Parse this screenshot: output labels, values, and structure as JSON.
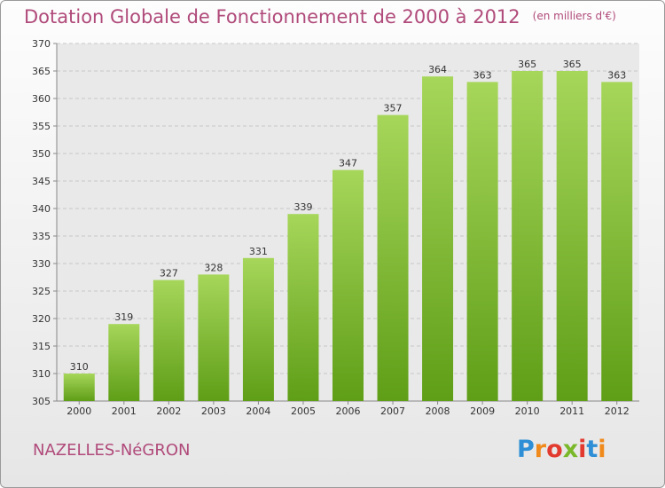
{
  "header": {
    "title": "Dotation Globale de Fonctionnement de 2000 à 2012",
    "unit": "(en milliers d'€)"
  },
  "footer": {
    "commune": "NAZELLES-NéGRON",
    "logo_letters": [
      "P",
      "r",
      "o",
      "x",
      "i",
      "t",
      "i"
    ],
    "logo_colors": [
      "#2e8fd6",
      "#f08a1c",
      "#e23a2e",
      "#7ab82a",
      "#e23a2e",
      "#2e8fd6",
      "#f08a1c"
    ]
  },
  "chart_data": {
    "type": "bar",
    "categories": [
      "2000",
      "2001",
      "2002",
      "2003",
      "2004",
      "2005",
      "2006",
      "2007",
      "2008",
      "2009",
      "2010",
      "2011",
      "2012"
    ],
    "values": [
      310,
      319,
      327,
      328,
      331,
      339,
      347,
      357,
      364,
      363,
      365,
      365,
      363
    ],
    "title": "Dotation Globale de Fonctionnement de 2000 à 2012",
    "xlabel": "",
    "ylabel": "",
    "ylim": [
      305,
      370
    ],
    "yticks": [
      305,
      310,
      315,
      320,
      325,
      330,
      335,
      340,
      345,
      350,
      355,
      360,
      365,
      370
    ],
    "bar_color_top": "#a6d65a",
    "bar_color_bottom": "#5f9e17",
    "grid": true
  }
}
